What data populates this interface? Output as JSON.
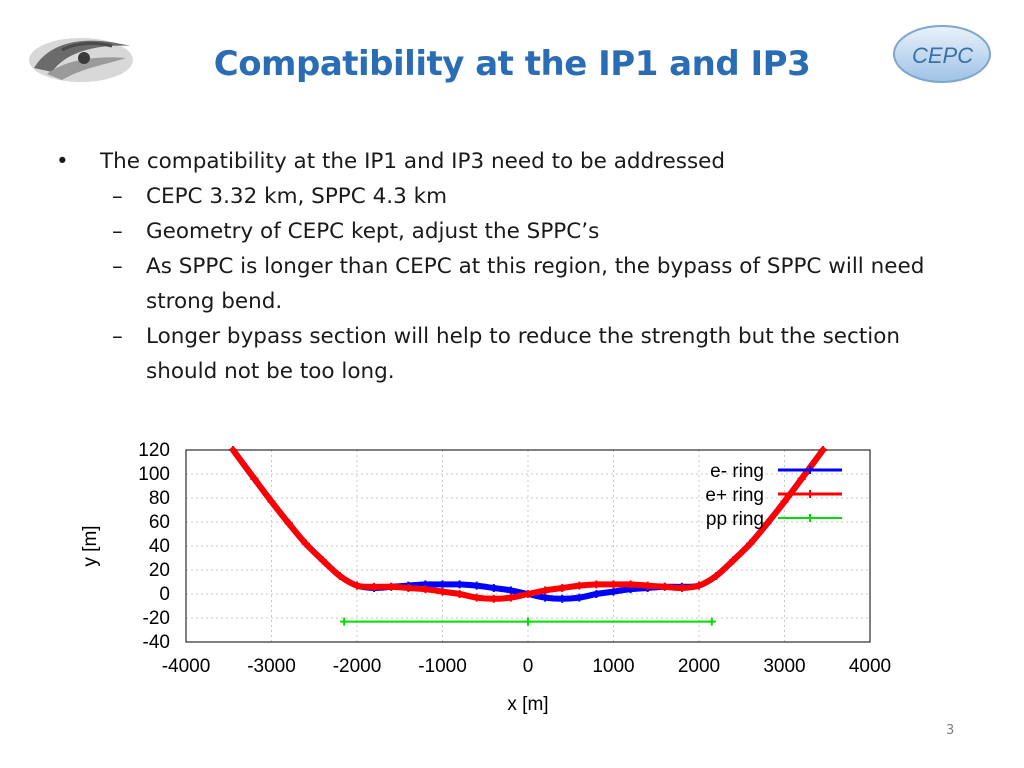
{
  "slide": {
    "title": "Compatibility at the IP1 and IP3",
    "page_number": "3",
    "logo_right_text": "CEPC"
  },
  "content": {
    "bullet": "The compatibility at the IP1 and IP3 need to be addressed",
    "subitems": [
      "CEPC  3.32 km, SPPC 4.3 km",
      "Geometry of CEPC kept, adjust the SPPC’s",
      "As SPPC is longer than CEPC at this region, the bypass of SPPC will need strong bend.",
      "Longer bypass section will help to reduce the strength but the section should not be too long."
    ]
  },
  "chart_data": {
    "type": "scatter",
    "xlabel": "x [m]",
    "ylabel": "y [m]",
    "xlim": [
      -4000,
      4000
    ],
    "ylim": [
      -40,
      120
    ],
    "xticks": [
      -4000,
      -3000,
      -2000,
      -1000,
      0,
      1000,
      2000,
      3000,
      4000
    ],
    "yticks": [
      -40,
      -20,
      0,
      20,
      40,
      60,
      80,
      100,
      120
    ],
    "grid": true,
    "legend_position": "top-right",
    "series": [
      {
        "name": "e- ring",
        "color": "#0000ff",
        "x": [
          -3450,
          -3200,
          -3000,
          -2800,
          -2600,
          -2400,
          -2200,
          -2000,
          -1800,
          -1600,
          -1400,
          -1200,
          -1000,
          -800,
          -600,
          -400,
          -200,
          0,
          200,
          400,
          600,
          800,
          1000,
          1200,
          1400,
          1600,
          1800,
          2000,
          2200,
          2400,
          2600,
          2800,
          3000,
          3200,
          3450
        ],
        "y": [
          120,
          96,
          77,
          59,
          42,
          28,
          15,
          7,
          5,
          6,
          7,
          8,
          8,
          8,
          7,
          5,
          3,
          0,
          -3,
          -4,
          -3,
          0,
          2,
          4,
          5,
          6,
          6,
          7,
          15,
          28,
          42,
          59,
          77,
          96,
          120
        ]
      },
      {
        "name": "e+ ring",
        "color": "#ff0000",
        "x": [
          -3450,
          -3200,
          -3000,
          -2800,
          -2600,
          -2400,
          -2200,
          -2000,
          -1800,
          -1600,
          -1400,
          -1200,
          -1000,
          -800,
          -600,
          -400,
          -200,
          0,
          200,
          400,
          600,
          800,
          1000,
          1200,
          1400,
          1600,
          1800,
          2000,
          2200,
          2400,
          2600,
          2800,
          3000,
          3200,
          3450
        ],
        "y": [
          120,
          96,
          77,
          59,
          42,
          28,
          15,
          7,
          6,
          6,
          5,
          4,
          2,
          0,
          -3,
          -4,
          -3,
          0,
          3,
          5,
          7,
          8,
          8,
          8,
          7,
          6,
          5,
          7,
          15,
          28,
          42,
          59,
          77,
          96,
          120
        ]
      },
      {
        "name": "pp ring",
        "color": "#00dd00",
        "x": [
          -2150,
          0,
          2150
        ],
        "y": [
          -23,
          -23,
          -23
        ]
      }
    ]
  }
}
